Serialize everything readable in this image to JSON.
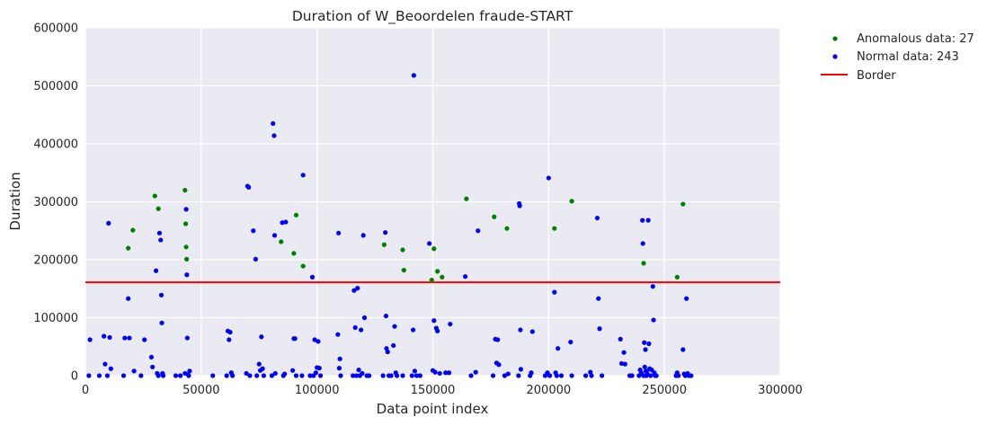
{
  "chart_data": {
    "type": "scatter",
    "title": "Duration of W_Beoordelen fraude-START",
    "xlabel": "Data point index",
    "ylabel": "Duration",
    "xlim": [
      0,
      300000
    ],
    "ylim": [
      0,
      600000
    ],
    "x_ticks": [
      0,
      50000,
      100000,
      150000,
      200000,
      250000,
      300000
    ],
    "y_ticks": [
      0,
      100000,
      200000,
      300000,
      400000,
      500000,
      600000
    ],
    "x_tick_labels": [
      "0",
      "50000",
      "100000",
      "150000",
      "200000",
      "250000",
      "300000"
    ],
    "y_tick_labels": [
      "0",
      "100000",
      "200000",
      "300000",
      "400000",
      "500000",
      "600000"
    ],
    "grid": true,
    "legend_position": "outside-top-right",
    "border": {
      "name": "Border",
      "y": 161000,
      "color": "#ff0000"
    },
    "series": [
      {
        "name": "Anomalous data: 27",
        "color": "#008000",
        "points": [
          [
            18500,
            220000
          ],
          [
            20500,
            251000
          ],
          [
            30000,
            310000
          ],
          [
            31500,
            288000
          ],
          [
            43000,
            320000
          ],
          [
            43300,
            262000
          ],
          [
            43500,
            222000
          ],
          [
            43700,
            201000
          ],
          [
            84500,
            231000
          ],
          [
            90000,
            211000
          ],
          [
            91000,
            277000
          ],
          [
            94000,
            189000
          ],
          [
            129000,
            226000
          ],
          [
            137000,
            217000
          ],
          [
            137500,
            182000
          ],
          [
            149500,
            165000
          ],
          [
            150500,
            219000
          ],
          [
            152000,
            180000
          ],
          [
            154000,
            170000
          ],
          [
            164500,
            305000
          ],
          [
            176500,
            274000
          ],
          [
            182000,
            254000
          ],
          [
            202500,
            254000
          ],
          [
            210000,
            301000
          ],
          [
            241000,
            194000
          ],
          [
            255500,
            170000
          ],
          [
            258000,
            296000
          ]
        ]
      },
      {
        "name": "Normal data: 243",
        "color": "#0000ff",
        "points": [
          [
            1500,
            0
          ],
          [
            2000,
            62000
          ],
          [
            6000,
            0
          ],
          [
            8000,
            68000
          ],
          [
            8500,
            20000
          ],
          [
            9500,
            0
          ],
          [
            10000,
            263000
          ],
          [
            10500,
            66000
          ],
          [
            11000,
            12000
          ],
          [
            16500,
            0
          ],
          [
            17000,
            65000
          ],
          [
            18500,
            133000
          ],
          [
            19000,
            65000
          ],
          [
            21000,
            8000
          ],
          [
            24000,
            0
          ],
          [
            25500,
            62000
          ],
          [
            28500,
            32000
          ],
          [
            29000,
            15000
          ],
          [
            30500,
            181000
          ],
          [
            31000,
            4000
          ],
          [
            31500,
            0
          ],
          [
            32000,
            246000
          ],
          [
            32500,
            234000
          ],
          [
            32800,
            139000
          ],
          [
            33000,
            91000
          ],
          [
            33300,
            4000
          ],
          [
            33600,
            0
          ],
          [
            39000,
            0
          ],
          [
            41000,
            0
          ],
          [
            43000,
            4000
          ],
          [
            43500,
            287000
          ],
          [
            43800,
            174000
          ],
          [
            44000,
            65000
          ],
          [
            44300,
            2000
          ],
          [
            44600,
            0
          ],
          [
            45000,
            8000
          ],
          [
            55000,
            0
          ],
          [
            61000,
            0
          ],
          [
            61500,
            77000
          ],
          [
            62000,
            62000
          ],
          [
            62500,
            75000
          ],
          [
            63000,
            5000
          ],
          [
            63500,
            0
          ],
          [
            69500,
            4000
          ],
          [
            70000,
            327000
          ],
          [
            70500,
            325000
          ],
          [
            71000,
            0
          ],
          [
            72500,
            250000
          ],
          [
            73500,
            201000
          ],
          [
            74000,
            0
          ],
          [
            75000,
            20000
          ],
          [
            75500,
            9000
          ],
          [
            76000,
            67000
          ],
          [
            76500,
            12000
          ],
          [
            77000,
            0
          ],
          [
            80500,
            0
          ],
          [
            81000,
            435000
          ],
          [
            81500,
            414000
          ],
          [
            81700,
            242000
          ],
          [
            82000,
            4000
          ],
          [
            85000,
            264000
          ],
          [
            85500,
            0
          ],
          [
            86000,
            3000
          ],
          [
            86500,
            265000
          ],
          [
            89500,
            9000
          ],
          [
            90000,
            64000
          ],
          [
            90500,
            64000
          ],
          [
            91000,
            0
          ],
          [
            93500,
            0
          ],
          [
            94000,
            346000
          ],
          [
            97000,
            0
          ],
          [
            98000,
            170000
          ],
          [
            98500,
            0
          ],
          [
            99000,
            62000
          ],
          [
            99500,
            5000
          ],
          [
            100000,
            14000
          ],
          [
            100500,
            59000
          ],
          [
            101000,
            13000
          ],
          [
            101500,
            0
          ],
          [
            109000,
            71000
          ],
          [
            109300,
            246000
          ],
          [
            109600,
            13000
          ],
          [
            109900,
            29000
          ],
          [
            110200,
            0
          ],
          [
            115500,
            0
          ],
          [
            116000,
            147000
          ],
          [
            116500,
            83000
          ],
          [
            117000,
            0
          ],
          [
            117500,
            151000
          ],
          [
            118000,
            10000
          ],
          [
            118500,
            0
          ],
          [
            119000,
            79000
          ],
          [
            119500,
            4000
          ],
          [
            120000,
            242000
          ],
          [
            120500,
            100000
          ],
          [
            121500,
            0
          ],
          [
            122500,
            0
          ],
          [
            128500,
            0
          ],
          [
            129500,
            247000
          ],
          [
            129800,
            103000
          ],
          [
            130000,
            47000
          ],
          [
            130500,
            41000
          ],
          [
            131000,
            0
          ],
          [
            132000,
            0
          ],
          [
            133000,
            52000
          ],
          [
            133500,
            85000
          ],
          [
            134000,
            5000
          ],
          [
            134500,
            0
          ],
          [
            137000,
            0
          ],
          [
            141000,
            0
          ],
          [
            141500,
            79000
          ],
          [
            141800,
            518000
          ],
          [
            142200,
            8000
          ],
          [
            143000,
            0
          ],
          [
            144500,
            0
          ],
          [
            148500,
            228000
          ],
          [
            150000,
            9000
          ],
          [
            150500,
            95000
          ],
          [
            151000,
            6000
          ],
          [
            151500,
            82000
          ],
          [
            152000,
            77000
          ],
          [
            153000,
            4000
          ],
          [
            155500,
            5000
          ],
          [
            157000,
            5000
          ],
          [
            157500,
            89000
          ],
          [
            164000,
            171000
          ],
          [
            166500,
            0
          ],
          [
            168500,
            6000
          ],
          [
            169500,
            250000
          ],
          [
            176000,
            0
          ],
          [
            177000,
            63000
          ],
          [
            177500,
            22000
          ],
          [
            178000,
            62000
          ],
          [
            178500,
            19000
          ],
          [
            181000,
            0
          ],
          [
            182500,
            3000
          ],
          [
            187000,
            0
          ],
          [
            187300,
            297000
          ],
          [
            187500,
            293000
          ],
          [
            187800,
            79000
          ],
          [
            188000,
            11000
          ],
          [
            192000,
            0
          ],
          [
            192500,
            5000
          ],
          [
            193000,
            76000
          ],
          [
            198500,
            0
          ],
          [
            199500,
            5000
          ],
          [
            200000,
            341000
          ],
          [
            200500,
            0
          ],
          [
            202500,
            144000
          ],
          [
            203000,
            5000
          ],
          [
            203500,
            0
          ],
          [
            204000,
            47000
          ],
          [
            205500,
            0
          ],
          [
            209500,
            58000
          ],
          [
            210000,
            0
          ],
          [
            216000,
            0
          ],
          [
            218000,
            6000
          ],
          [
            218500,
            0
          ],
          [
            221000,
            272000
          ],
          [
            221500,
            133000
          ],
          [
            222000,
            81000
          ],
          [
            223000,
            0
          ],
          [
            231000,
            63000
          ],
          [
            231500,
            21000
          ],
          [
            232500,
            40000
          ],
          [
            233000,
            20000
          ],
          [
            235000,
            0
          ],
          [
            236000,
            0
          ],
          [
            239000,
            0
          ],
          [
            239500,
            10000
          ],
          [
            240000,
            5000
          ],
          [
            240500,
            268000
          ],
          [
            240700,
            228000
          ],
          [
            241000,
            0
          ],
          [
            241300,
            57000
          ],
          [
            241500,
            15000
          ],
          [
            241800,
            45000
          ],
          [
            242000,
            8000
          ],
          [
            242200,
            0
          ],
          [
            242500,
            5000
          ],
          [
            243000,
            268000
          ],
          [
            243300,
            55000
          ],
          [
            243600,
            12000
          ],
          [
            244000,
            0
          ],
          [
            244500,
            10000
          ],
          [
            245000,
            154000
          ],
          [
            245300,
            96000
          ],
          [
            245600,
            5000
          ],
          [
            246000,
            0
          ],
          [
            246500,
            0
          ],
          [
            255000,
            0
          ],
          [
            255500,
            5000
          ],
          [
            256000,
            0
          ],
          [
            258000,
            45000
          ],
          [
            258500,
            3000
          ],
          [
            259000,
            0
          ],
          [
            259500,
            133000
          ],
          [
            260000,
            4000
          ],
          [
            260500,
            0
          ],
          [
            261500,
            0
          ]
        ]
      }
    ]
  }
}
